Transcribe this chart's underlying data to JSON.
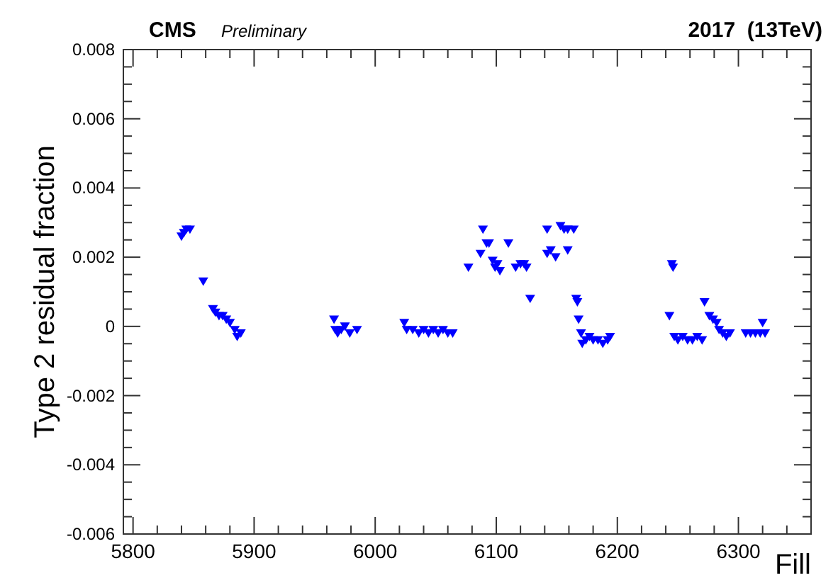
{
  "chart_data": {
    "type": "scatter",
    "title": "CMS",
    "subtitle": "Preliminary",
    "annotations": [
      "2017  (13TeV)"
    ],
    "xlabel": "Fill",
    "ylabel": "Type 2 residual fraction",
    "xlim": [
      5792,
      6360
    ],
    "ylim": [
      -0.006,
      0.008
    ],
    "xticks": [
      5800,
      {
        "value": 5820,
        "label": null
      },
      {
        "value": 5840,
        "label": null
      },
      {
        "value": 5860,
        "label": null
      },
      {
        "value": 5880,
        "label": null
      },
      5900,
      {
        "value": 5920,
        "label": null
      },
      {
        "value": 5940,
        "label": null
      },
      {
        "value": 5960,
        "label": null
      },
      {
        "value": 5980,
        "label": null
      },
      6000,
      {
        "value": 6020,
        "label": null
      },
      {
        "value": 6040,
        "label": null
      },
      {
        "value": 6060,
        "label": null
      },
      {
        "value": 6080,
        "label": null
      },
      6100,
      {
        "value": 6120,
        "label": null
      },
      {
        "value": 6140,
        "label": null
      },
      {
        "value": 6160,
        "label": null
      },
      {
        "value": 6180,
        "label": null
      },
      6200,
      {
        "value": 6220,
        "label": null
      },
      {
        "value": 6240,
        "label": null
      },
      {
        "value": 6260,
        "label": null
      },
      {
        "value": 6280,
        "label": null
      },
      6300,
      {
        "value": 6320,
        "label": null
      },
      {
        "value": 6340,
        "label": null
      }
    ],
    "yticks": [
      -0.006,
      {
        "value": -0.0055,
        "label": null
      },
      {
        "value": -0.005,
        "label": null
      },
      {
        "value": -0.0045,
        "label": null
      },
      -0.004,
      {
        "value": -0.0035,
        "label": null
      },
      {
        "value": -0.003,
        "label": null
      },
      {
        "value": -0.0025,
        "label": null
      },
      -0.002,
      {
        "value": -0.0015,
        "label": null
      },
      {
        "value": -0.001,
        "label": null
      },
      {
        "value": -0.0005,
        "label": null
      },
      0,
      {
        "value": 0.0005,
        "label": null
      },
      {
        "value": 0.001,
        "label": null
      },
      {
        "value": 0.0015,
        "label": null
      },
      0.002,
      {
        "value": 0.0025,
        "label": null
      },
      {
        "value": 0.003,
        "label": null
      },
      {
        "value": 0.0035,
        "label": null
      },
      0.004,
      {
        "value": 0.0045,
        "label": null
      },
      {
        "value": 0.005,
        "label": null
      },
      {
        "value": 0.0055,
        "label": null
      },
      0.006,
      {
        "value": 0.0065,
        "label": null
      },
      {
        "value": 0.007,
        "label": null
      },
      {
        "value": 0.0075,
        "label": null
      },
      0.008
    ],
    "marker": "triangle",
    "grid": false,
    "series": [
      {
        "color": "#0000ff",
        "x": [
          5840,
          5842,
          5844,
          5847,
          5858,
          5866,
          5868,
          5871,
          5874,
          5877,
          5880,
          5884,
          5886,
          5889,
          5966,
          5967,
          5969,
          5972,
          5975,
          5979,
          5985,
          6024,
          6026,
          6031,
          6036,
          6040,
          6044,
          6048,
          6052,
          6056,
          6060,
          6064,
          6077,
          6087,
          6089,
          6092,
          6094,
          6097,
          6099,
          6101,
          6103,
          6110,
          6116,
          6120,
          6123,
          6125,
          6128,
          6142,
          6142,
          6145,
          6149,
          6153,
          6156,
          6159,
          6159,
          6164,
          6166,
          6167,
          6168,
          6170,
          6171,
          6174,
          6177,
          6180,
          6184,
          6188,
          6192,
          6194,
          6243,
          6245,
          6246,
          6247,
          6250,
          6254,
          6258,
          6262,
          6266,
          6270,
          6272,
          6276,
          6279,
          6282,
          6284,
          6287,
          6290,
          6293,
          6306,
          6310,
          6314,
          6318,
          6320,
          6322
        ],
        "values": [
          0.0026,
          0.0027,
          0.0028,
          0.0028,
          0.0013,
          0.0005,
          0.0004,
          0.0003,
          0.0003,
          0.0002,
          0.0001,
          -0.0001,
          -0.0003,
          -0.0002,
          0.0002,
          -0.0001,
          -0.0002,
          -0.0001,
          0,
          -0.0002,
          -0.0001,
          0.0001,
          -0.0001,
          -0.0001,
          -0.0002,
          -0.0001,
          -0.0002,
          -0.0001,
          -0.0002,
          -0.0001,
          -0.0002,
          -0.0002,
          0.0017,
          0.0021,
          0.0028,
          0.0024,
          0.0024,
          0.0019,
          0.0017,
          0.0018,
          0.0016,
          0.0024,
          0.0017,
          0.0018,
          0.0018,
          0.0017,
          0.0008,
          0.0028,
          0.0021,
          0.0022,
          0.002,
          0.0029,
          0.0028,
          0.0028,
          0.0022,
          0.0028,
          0.0008,
          0.0007,
          0.0002,
          -0.0002,
          -0.0005,
          -0.0004,
          -0.0003,
          -0.0004,
          -0.0004,
          -0.0005,
          -0.0004,
          -0.0003,
          0.0003,
          0.0018,
          0.0017,
          -0.0003,
          -0.0004,
          -0.0003,
          -0.0004,
          -0.0004,
          -0.0003,
          -0.0004,
          0.0007,
          0.0003,
          0.0002,
          0.0001,
          -0.0001,
          -0.0002,
          -0.0003,
          -0.0002,
          -0.0002,
          -0.0002,
          -0.0002,
          -0.0002,
          0.0001,
          -0.0002
        ]
      }
    ]
  }
}
